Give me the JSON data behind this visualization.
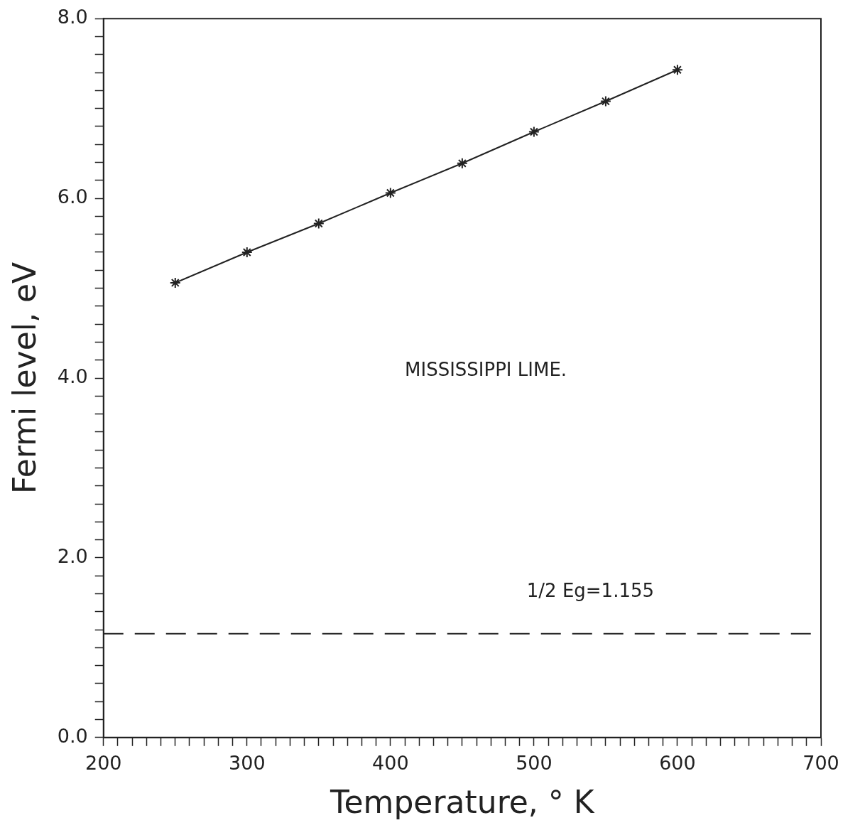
{
  "chart_data": {
    "type": "line",
    "xlabel": "Temperature, ° K",
    "ylabel": "Fermi level, eV",
    "x": [
      250,
      300,
      350,
      400,
      450,
      500,
      550,
      600
    ],
    "series": [
      {
        "color": "#222222",
        "values": [
          5.06,
          5.4,
          5.72,
          6.06,
          6.39,
          6.74,
          7.08,
          7.43
        ]
      }
    ],
    "marker": "cross",
    "line_style": "solid",
    "grid": false,
    "legend": false,
    "xlim": [
      200,
      700
    ],
    "xticks": [
      200,
      {
        "value": 210,
        "label": null
      },
      {
        "value": 220,
        "label": null
      },
      {
        "value": 230,
        "label": null
      },
      {
        "value": 240,
        "label": null
      },
      {
        "value": 250,
        "label": null
      },
      {
        "value": 260,
        "label": null
      },
      {
        "value": 270,
        "label": null
      },
      {
        "value": 280,
        "label": null
      },
      {
        "value": 290,
        "label": null
      },
      300,
      {
        "value": 310,
        "label": null
      },
      {
        "value": 320,
        "label": null
      },
      {
        "value": 330,
        "label": null
      },
      {
        "value": 340,
        "label": null
      },
      {
        "value": 350,
        "label": null
      },
      {
        "value": 360,
        "label": null
      },
      {
        "value": 370,
        "label": null
      },
      {
        "value": 380,
        "label": null
      },
      {
        "value": 390,
        "label": null
      },
      400,
      {
        "value": 410,
        "label": null
      },
      {
        "value": 420,
        "label": null
      },
      {
        "value": 430,
        "label": null
      },
      {
        "value": 440,
        "label": null
      },
      {
        "value": 450,
        "label": null
      },
      {
        "value": 460,
        "label": null
      },
      {
        "value": 470,
        "label": null
      },
      {
        "value": 480,
        "label": null
      },
      {
        "value": 490,
        "label": null
      },
      500,
      {
        "value": 510,
        "label": null
      },
      {
        "value": 520,
        "label": null
      },
      {
        "value": 530,
        "label": null
      },
      {
        "value": 540,
        "label": null
      },
      {
        "value": 550,
        "label": null
      },
      {
        "value": 560,
        "label": null
      },
      {
        "value": 570,
        "label": null
      },
      {
        "value": 580,
        "label": null
      },
      {
        "value": 590,
        "label": null
      },
      600,
      {
        "value": 610,
        "label": null
      },
      {
        "value": 620,
        "label": null
      },
      {
        "value": 630,
        "label": null
      },
      {
        "value": 640,
        "label": null
      },
      {
        "value": 650,
        "label": null
      },
      {
        "value": 660,
        "label": null
      },
      {
        "value": 670,
        "label": null
      },
      {
        "value": 680,
        "label": null
      },
      {
        "value": 690,
        "label": null
      },
      700
    ],
    "ylim": [
      0,
      8
    ],
    "yticks": [
      {
        "value": 0,
        "label": "0.0"
      },
      {
        "value": 0.2,
        "label": null
      },
      {
        "value": 0.4,
        "label": null
      },
      {
        "value": 0.6,
        "label": null
      },
      {
        "value": 0.8,
        "label": null
      },
      {
        "value": 1,
        "label": null
      },
      {
        "value": 1.2,
        "label": null
      },
      {
        "value": 1.4,
        "label": null
      },
      {
        "value": 1.6,
        "label": null
      },
      {
        "value": 1.8,
        "label": null
      },
      {
        "value": 2,
        "label": "2.0"
      },
      {
        "value": 2.2,
        "label": null
      },
      {
        "value": 2.4,
        "label": null
      },
      {
        "value": 2.6,
        "label": null
      },
      {
        "value": 2.8,
        "label": null
      },
      {
        "value": 3,
        "label": null
      },
      {
        "value": 3.2,
        "label": null
      },
      {
        "value": 3.4,
        "label": null
      },
      {
        "value": 3.6,
        "label": null
      },
      {
        "value": 3.8,
        "label": null
      },
      {
        "value": 4,
        "label": "4.0"
      },
      {
        "value": 4.2,
        "label": null
      },
      {
        "value": 4.4,
        "label": null
      },
      {
        "value": 4.6,
        "label": null
      },
      {
        "value": 4.8,
        "label": null
      },
      {
        "value": 5,
        "label": null
      },
      {
        "value": 5.2,
        "label": null
      },
      {
        "value": 5.4,
        "label": null
      },
      {
        "value": 5.6,
        "label": null
      },
      {
        "value": 5.8,
        "label": null
      },
      {
        "value": 6,
        "label": "6.0"
      },
      {
        "value": 6.2,
        "label": null
      },
      {
        "value": 6.4,
        "label": null
      },
      {
        "value": 6.6,
        "label": null
      },
      {
        "value": 6.8,
        "label": null
      },
      {
        "value": 7,
        "label": null
      },
      {
        "value": 7.2,
        "label": null
      },
      {
        "value": 7.4,
        "label": null
      },
      {
        "value": 7.6,
        "label": null
      },
      {
        "value": 7.8,
        "label": null
      },
      {
        "value": 8,
        "label": "8.0"
      }
    ],
    "ref_lines": [
      {
        "axis": "y",
        "value": 1.155,
        "label": "1/2 Eg=1.155",
        "line_style": "dashed",
        "color": "#222222"
      }
    ],
    "annotations": [
      "MISSISSIPPI LIME."
    ]
  }
}
